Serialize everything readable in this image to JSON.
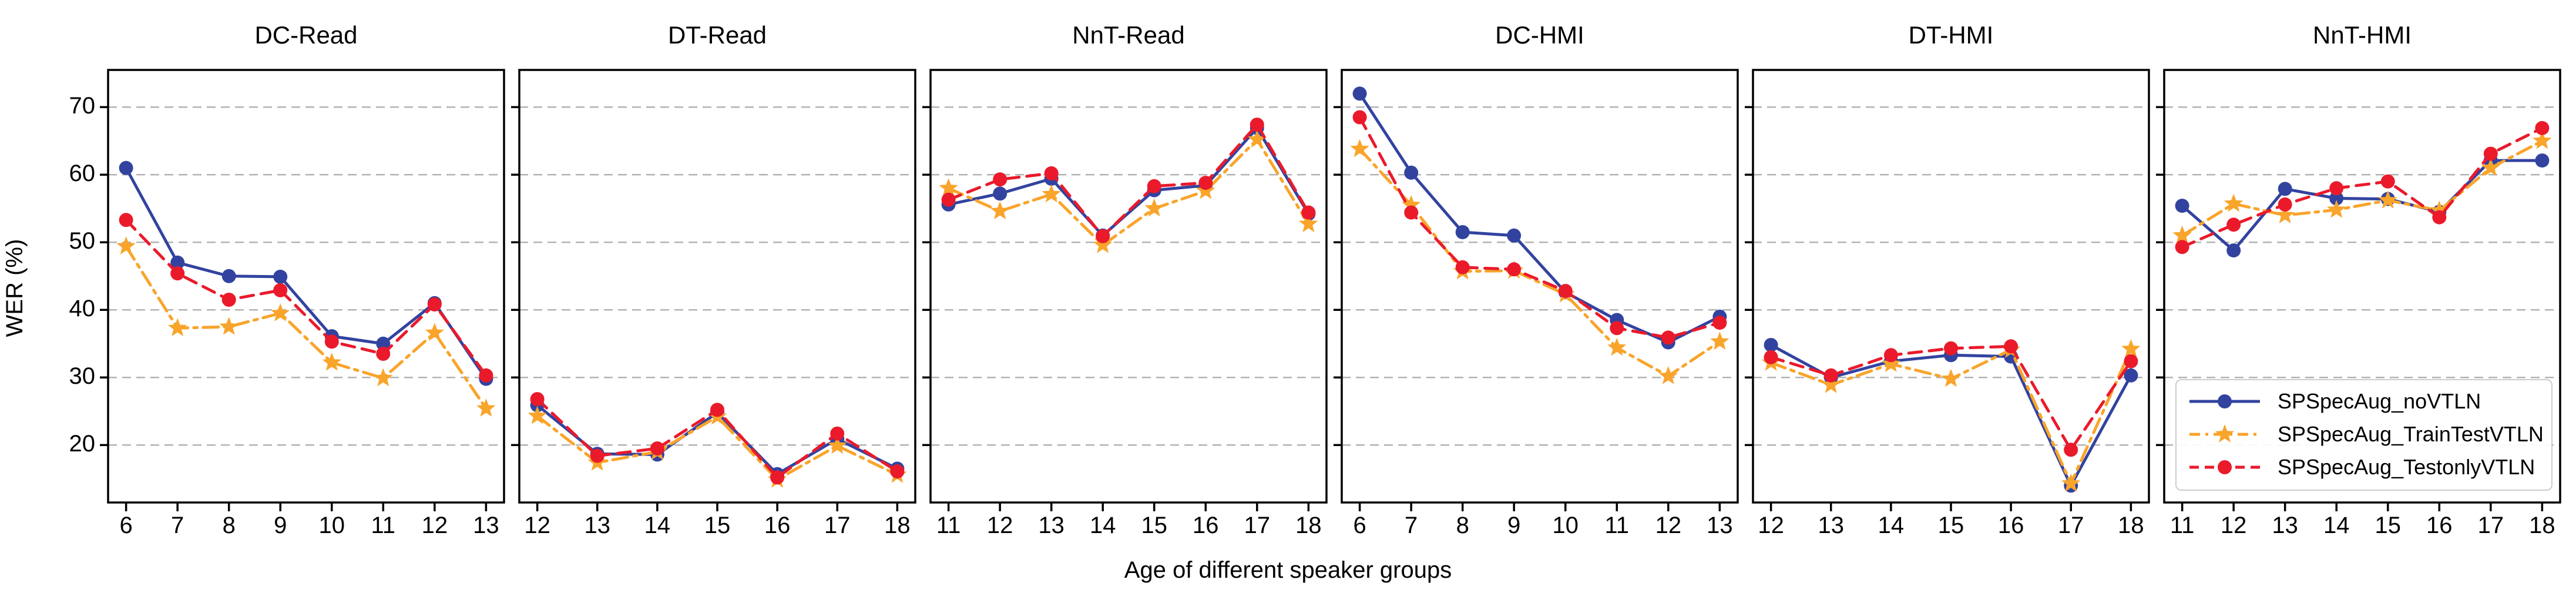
{
  "chart_data": {
    "type": "line",
    "xlabel": "Age of different speaker groups",
    "ylabel": "WER (%)",
    "ylim": [
      11.5,
      75.5
    ],
    "yticks": [
      20,
      30,
      40,
      50,
      60,
      70
    ],
    "grid": "horizontal-dashed",
    "legend_position": "lower-right-of-last-panel",
    "series": [
      {
        "name": "SPSpecAug_noVTLN",
        "color": "#32439f",
        "marker": "circle",
        "linestyle": "solid"
      },
      {
        "name": "SPSpecAug_TrainTestVTLN",
        "color": "#f9a42a",
        "marker": "star",
        "linestyle": "dashdot"
      },
      {
        "name": "SPSpecAug_TestonlyVTLN",
        "color": "#ea1a2b",
        "marker": "circle",
        "linestyle": "dashed"
      }
    ],
    "panels": [
      {
        "title": "DC-Read",
        "x": [
          6,
          7,
          8,
          9,
          10,
          11,
          12,
          13
        ],
        "values": [
          [
            61.0,
            47.0,
            45.0,
            44.9,
            36.1,
            35.0,
            41.0,
            29.8
          ],
          [
            49.4,
            37.3,
            37.5,
            39.5,
            32.2,
            29.9,
            36.6,
            25.4
          ],
          [
            53.3,
            45.4,
            41.5,
            42.9,
            35.3,
            33.5,
            40.8,
            30.3
          ]
        ]
      },
      {
        "title": "DT-Read",
        "x": [
          12,
          13,
          14,
          15,
          16,
          17,
          18
        ],
        "values": [
          [
            25.9,
            18.7,
            18.6,
            24.8,
            15.7,
            20.9,
            16.5
          ],
          [
            24.3,
            17.4,
            19.0,
            24.2,
            14.9,
            19.9,
            15.6
          ],
          [
            26.8,
            18.4,
            19.5,
            25.2,
            15.2,
            21.7,
            16.1
          ]
        ]
      },
      {
        "title": "NnT-Read",
        "x": [
          11,
          12,
          13,
          14,
          15,
          16,
          17,
          18
        ],
        "values": [
          [
            55.6,
            57.2,
            59.4,
            51.0,
            57.7,
            58.4,
            66.9,
            54.2
          ],
          [
            58.0,
            54.6,
            57.1,
            49.6,
            55.0,
            57.6,
            65.2,
            52.7
          ],
          [
            56.3,
            59.3,
            60.2,
            50.9,
            58.3,
            58.8,
            67.4,
            54.4
          ]
        ]
      },
      {
        "title": "DC-HMI",
        "x": [
          6,
          7,
          8,
          9,
          10,
          11,
          12,
          13
        ],
        "values": [
          [
            72.0,
            60.3,
            51.5,
            51.0,
            42.6,
            38.5,
            35.2,
            39.0
          ],
          [
            63.8,
            55.5,
            45.7,
            45.8,
            42.3,
            34.4,
            30.2,
            35.3
          ],
          [
            68.5,
            54.4,
            46.3,
            46.0,
            42.8,
            37.3,
            35.9,
            38.1
          ]
        ]
      },
      {
        "title": "DT-HMI",
        "x": [
          12,
          13,
          14,
          15,
          16,
          17,
          18
        ],
        "values": [
          [
            34.8,
            30.0,
            32.4,
            33.3,
            33.1,
            14.0,
            30.3
          ],
          [
            32.2,
            28.9,
            32.0,
            29.8,
            34.1,
            14.3,
            34.2
          ],
          [
            33.0,
            30.3,
            33.3,
            34.3,
            34.6,
            19.3,
            32.4
          ]
        ]
      },
      {
        "title": "NnT-HMI",
        "x": [
          11,
          12,
          13,
          14,
          15,
          16,
          17,
          18
        ],
        "values": [
          [
            55.4,
            48.8,
            57.9,
            56.5,
            56.4,
            54.5,
            62.1,
            62.1
          ],
          [
            51.0,
            55.7,
            54.0,
            54.8,
            56.2,
            54.7,
            61.0,
            65.0
          ],
          [
            49.3,
            52.6,
            55.6,
            58.0,
            59.0,
            53.7,
            63.1,
            66.9
          ]
        ]
      }
    ]
  }
}
